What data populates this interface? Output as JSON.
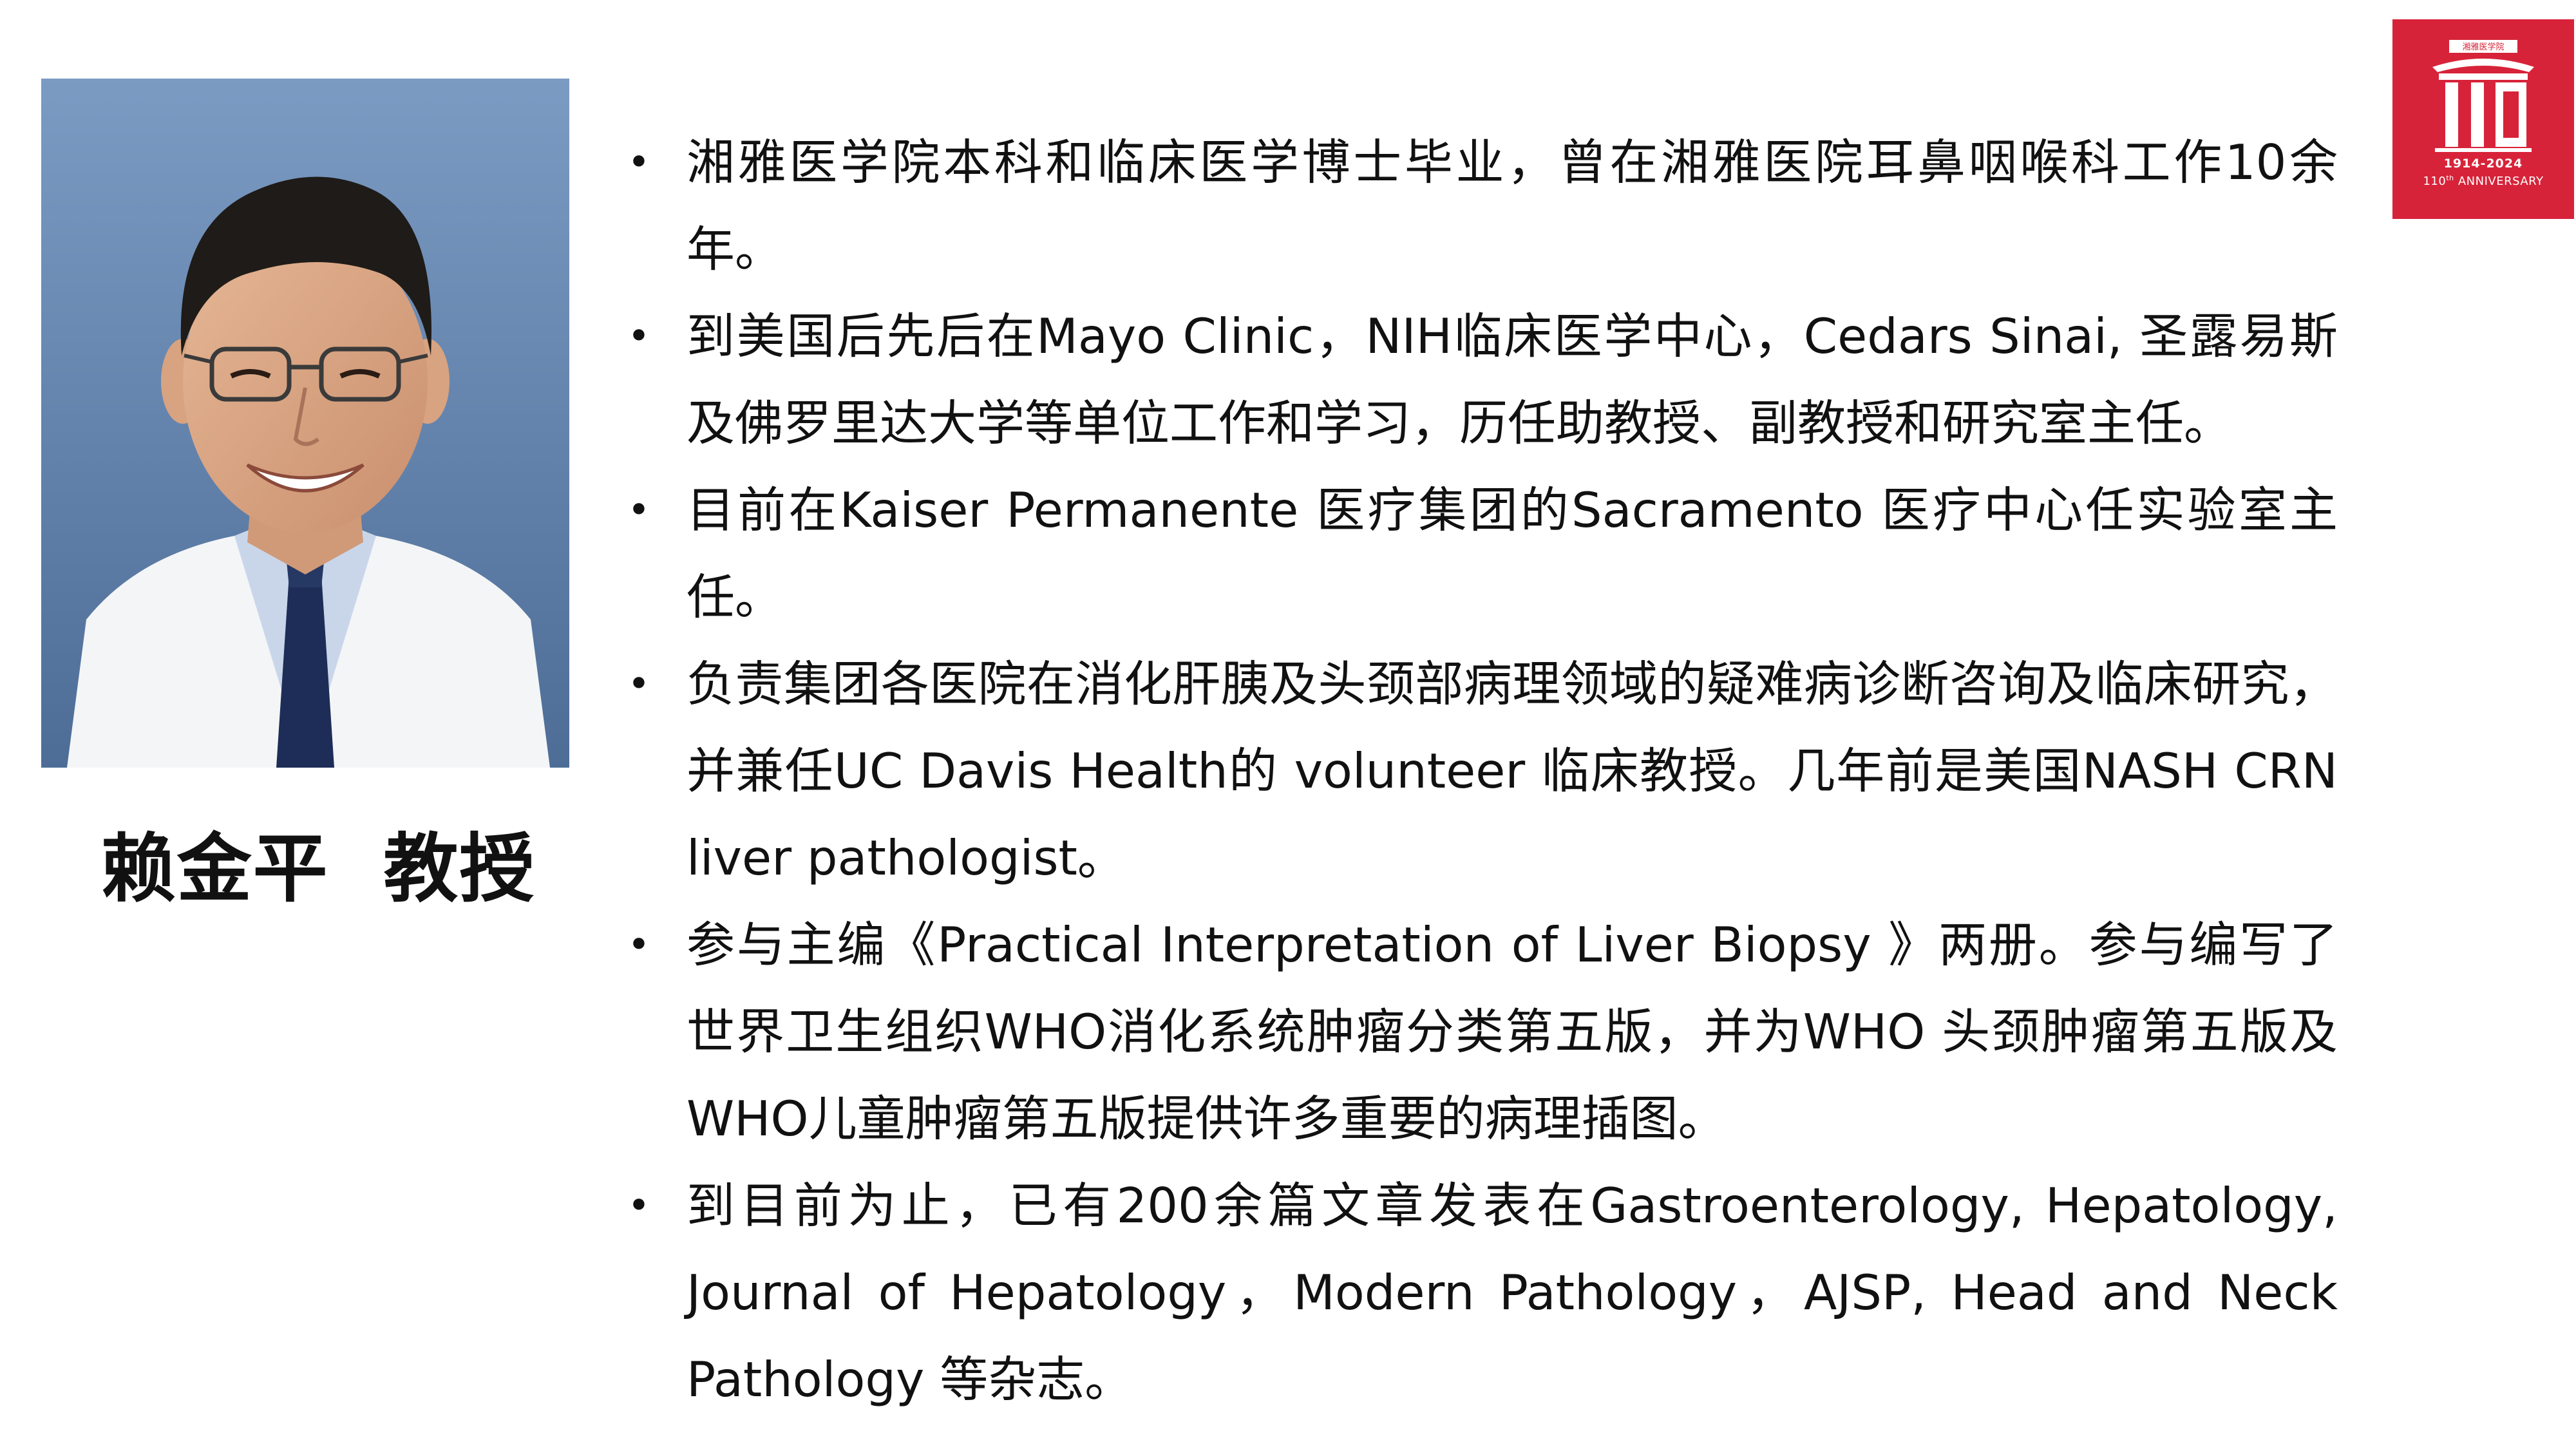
{
  "profile": {
    "name": "赖金平  教授"
  },
  "bio": [
    "湘雅医学院本科和临床医学博士毕业，曾在湘雅医院耳鼻咽喉科工作10余年。",
    "到美国后先后在Mayo Clinic，NIH临床医学中心，Cedars Sinai, 圣露易斯及佛罗里达大学等单位工作和学习，历任助教授、副教授和研究室主任。",
    "目前在Kaiser Permanente 医疗集团的Sacramento 医疗中心任实验室主任。",
    "负责集团各医院在消化肝胰及头颈部病理领域的疑难病诊断咨询及临床研究，并兼任UC Davis Health的 volunteer 临床教授。几年前是美国NASH CRN liver pathologist。",
    "参与主编《Practical Interpretation of Liver Biopsy 》两册。参与编写了世界卫生组织WHO消化系统肿瘤分类第五版，并为WHO 头颈肿瘤第五版及WHO儿童肿瘤第五版提供许多重要的病理插图。",
    "到目前为止，已有200余篇文章发表在Gastroenterology, Hepatology, Journal of Hepatology，Modern Pathology，AJSP, Head and Neck Pathology 等杂志。"
  ],
  "logo": {
    "years": "1914-2024",
    "ordinal": "110",
    "ordinal_suffix": "th",
    "anniversary": "ANNIVERSARY",
    "banner_text": "湘雅医学院",
    "color": "#d72339"
  },
  "bullet_symbol": "•"
}
